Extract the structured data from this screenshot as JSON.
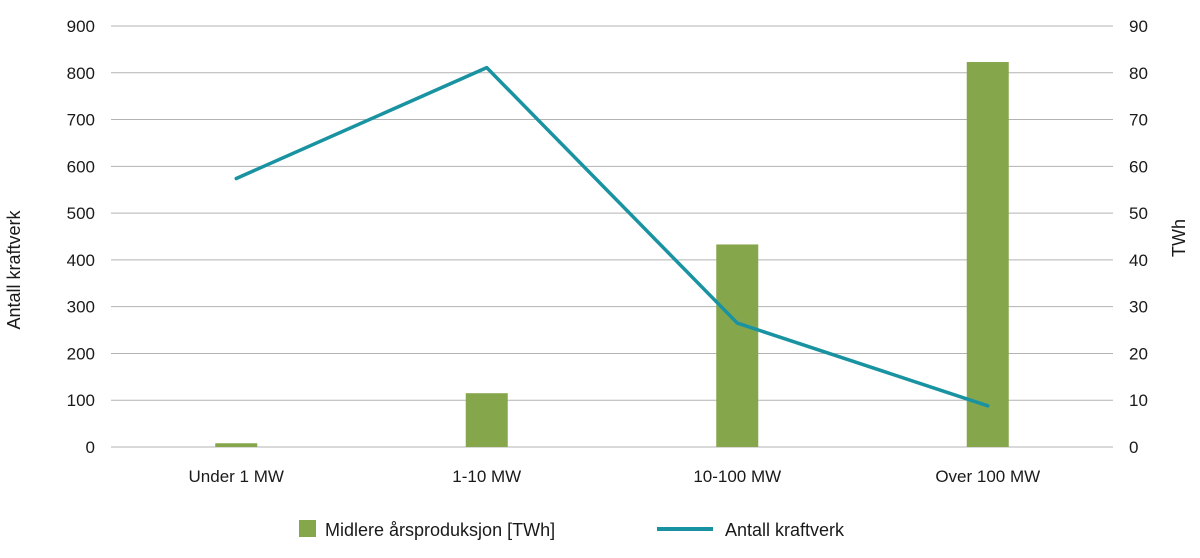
{
  "chart_data": {
    "type": "bar+line",
    "categories": [
      "Under 1 MW",
      "1-10 MW",
      "10-100 MW",
      "Over 100 MW"
    ],
    "bar_series": {
      "name": "Midlere årsproduksjon [TWh]",
      "axis": "right",
      "values": [
        0.8,
        11.5,
        43.3,
        82.3
      ],
      "color": "#86a64c"
    },
    "line_series": {
      "name": "Antall kraftverk",
      "axis": "left",
      "values": [
        574,
        811,
        265,
        88
      ],
      "color": "#1993a1"
    },
    "y_left": {
      "label": "Antall kraftverk",
      "ticks": [
        "0",
        "100",
        "200",
        "300",
        "400",
        "500",
        "600",
        "700",
        "800",
        "900"
      ],
      "range": [
        0,
        900
      ]
    },
    "y_right": {
      "label": "TWh",
      "ticks": [
        "0",
        "10",
        "20",
        "30",
        "40",
        "50",
        "60",
        "70",
        "80",
        "90"
      ],
      "range": [
        0,
        90
      ]
    },
    "grid": true,
    "legend_position": "bottom"
  },
  "colors": {
    "grid": "#b3b3b3",
    "text": "#1a1a1a"
  }
}
